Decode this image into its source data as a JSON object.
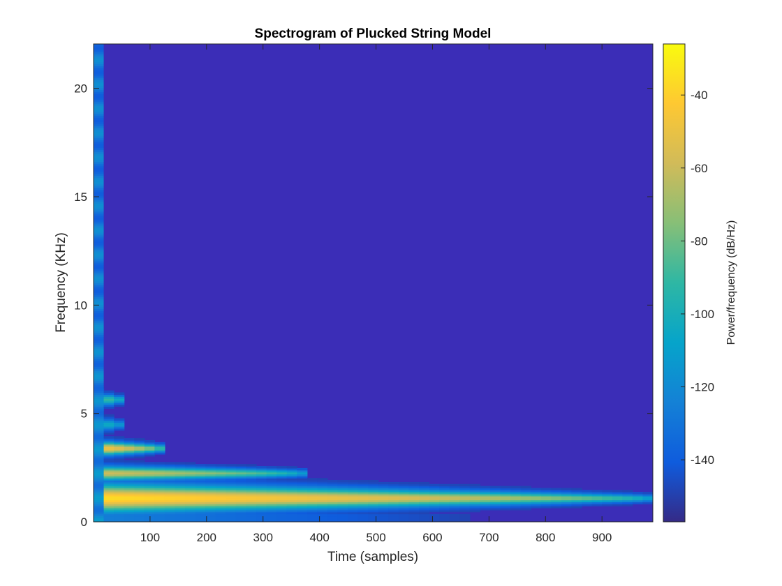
{
  "chart_data": {
    "type": "heatmap",
    "title": "Spectrogram of Plucked String Model",
    "xlabel": "Time (samples)",
    "ylabel": "Frequency (KHz)",
    "colorbar_label": "Power/frequency (dB/Hz)",
    "xlim": [
      0,
      990
    ],
    "ylim": [
      0,
      22.05
    ],
    "clim": [
      -157,
      -26
    ],
    "colormap": "parula",
    "x_ticks": [
      100,
      200,
      300,
      400,
      500,
      600,
      700,
      800,
      900
    ],
    "x_tick_labels": [
      "100",
      "200",
      "300",
      "400",
      "500",
      "600",
      "700",
      "800",
      "900"
    ],
    "y_ticks": [
      0,
      5,
      10,
      15,
      20
    ],
    "y_tick_labels": [
      "0",
      "5",
      "10",
      "15",
      "20"
    ],
    "colorbar_ticks": [
      -40,
      -60,
      -80,
      -100,
      -120,
      -140
    ],
    "colorbar_tick_labels": [
      "-40",
      "-60",
      "-80",
      "-100",
      "-120",
      "-140"
    ],
    "background_level_db": -150,
    "partials": [
      {
        "frequency_khz": 1.1,
        "peak_db": -35,
        "decay_end_samples": 1000
      },
      {
        "frequency_khz": 2.25,
        "peak_db": -58,
        "decay_end_samples": 380
      },
      {
        "frequency_khz": 3.4,
        "peak_db": -42,
        "decay_end_samples": 130
      },
      {
        "frequency_khz": 4.5,
        "peak_db": -95,
        "decay_end_samples": 55
      },
      {
        "frequency_khz": 5.65,
        "peak_db": -80,
        "decay_end_samples": 55
      }
    ]
  }
}
